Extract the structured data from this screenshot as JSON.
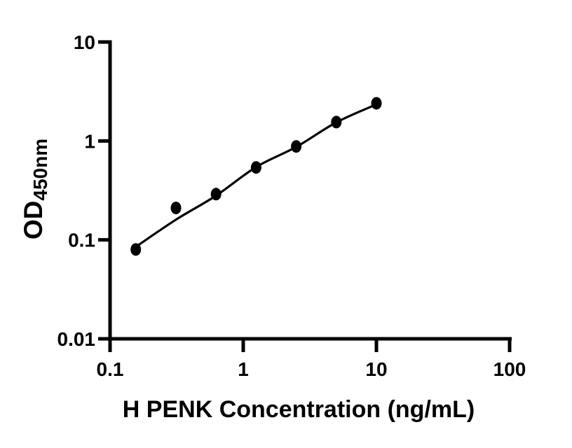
{
  "figure": {
    "background": "#ffffff",
    "foreground": "#000000"
  },
  "chart_data": {
    "type": "scatter",
    "scale": "log-log",
    "title": "",
    "xlabel": "H PENK Concentration (ng/mL)",
    "ylabel": "OD450nm",
    "ylabel_main": "OD",
    "ylabel_sub": "450nm",
    "xlim": [
      0.1,
      100
    ],
    "ylim": [
      0.01,
      10
    ],
    "grid": false,
    "legend": false,
    "x_ticks": [
      {
        "value": 0.1,
        "label": "0.1"
      },
      {
        "value": 1,
        "label": "1"
      },
      {
        "value": 10,
        "label": "10"
      },
      {
        "value": 100,
        "label": "100"
      }
    ],
    "y_ticks": [
      {
        "value": 10,
        "label": "10"
      },
      {
        "value": 1,
        "label": "1"
      },
      {
        "value": 0.1,
        "label": "0.1"
      },
      {
        "value": 0.01,
        "label": "0.01"
      }
    ],
    "series": [
      {
        "name": "standard-points",
        "type": "scatter",
        "marker": "filled-circle",
        "color": "#000000",
        "x": [
          0.156,
          0.3125,
          0.625,
          1.25,
          2.5,
          5,
          10
        ],
        "y": [
          0.08,
          0.21,
          0.29,
          0.54,
          0.88,
          1.55,
          2.4
        ]
      },
      {
        "name": "fit-line",
        "type": "line",
        "color": "#000000",
        "x": [
          0.156,
          0.3125,
          0.625,
          1.25,
          2.5,
          5,
          10
        ],
        "y": [
          0.085,
          0.16,
          0.28,
          0.545,
          0.87,
          1.54,
          2.34
        ]
      }
    ]
  }
}
